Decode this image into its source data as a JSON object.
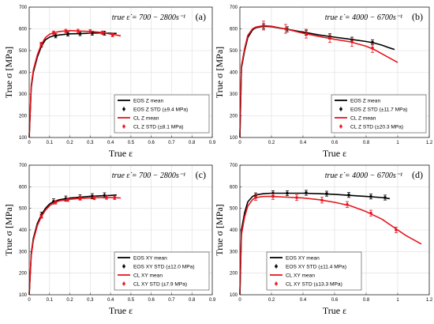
{
  "chart_data": [
    {
      "type": "line",
      "panel_label": "(a)",
      "annotation": "true ε̇ = 700 − 2800s⁻¹",
      "xlabel": "True ε",
      "ylabel": "True σ [MPa]",
      "xlim": [
        0,
        0.9
      ],
      "ylim": [
        100,
        700
      ],
      "xticks": [
        "0",
        "0.1",
        "0.2",
        "0.3",
        "0.4",
        "0.5",
        "0.6",
        "0.7",
        "0.8",
        "0.9"
      ],
      "yticks": [
        "100",
        "200",
        "300",
        "400",
        "500",
        "600",
        "700"
      ],
      "grid": true,
      "legend_position": "bottom-right",
      "series": [
        {
          "name": "EOS Z mean",
          "color": "#000000",
          "style": "line",
          "x": [
            0,
            0.01,
            0.02,
            0.04,
            0.06,
            0.08,
            0.1,
            0.12,
            0.15,
            0.2,
            0.25,
            0.3,
            0.35,
            0.4,
            0.43
          ],
          "y": [
            100,
            330,
            400,
            470,
            520,
            550,
            562,
            568,
            572,
            577,
            578,
            580,
            581,
            580,
            579
          ]
        },
        {
          "name": "EOS Z STD (±9.4 MPa)",
          "color": "#000000",
          "style": "errorbar",
          "x": [
            0.06,
            0.13,
            0.19,
            0.25,
            0.31,
            0.37
          ],
          "y": [
            525,
            568,
            576,
            578,
            580,
            580
          ],
          "err": [
            9.4,
            9.4,
            9.4,
            9.4,
            9.4,
            9.4
          ]
        },
        {
          "name": "CL Z mean",
          "color": "#e8141c",
          "style": "line",
          "x": [
            0,
            0.01,
            0.02,
            0.04,
            0.06,
            0.08,
            0.1,
            0.12,
            0.15,
            0.2,
            0.25,
            0.3,
            0.35,
            0.4,
            0.45
          ],
          "y": [
            100,
            340,
            410,
            480,
            530,
            560,
            575,
            582,
            588,
            592,
            590,
            588,
            584,
            576,
            568
          ]
        },
        {
          "name": "CL Z STD (±8.1 MPa)",
          "color": "#e8141c",
          "style": "errorbar",
          "x": [
            0.06,
            0.12,
            0.18,
            0.24,
            0.3,
            0.36,
            0.41
          ],
          "y": [
            530,
            582,
            590,
            590,
            588,
            582,
            572
          ],
          "err": [
            8.1,
            8.1,
            8.1,
            8.1,
            8.1,
            8.1,
            8.1
          ]
        }
      ]
    },
    {
      "type": "line",
      "panel_label": "(b)",
      "annotation": "true ε̇ = 4000 − 6700s⁻¹",
      "xlabel": "True ε",
      "ylabel": "True σ [MPa]",
      "xlim": [
        0,
        1.2
      ],
      "ylim": [
        100,
        700
      ],
      "xticks": [
        "0",
        "0.2",
        "0.4",
        "0.6",
        "0.8",
        "1",
        "1.2"
      ],
      "yticks": [
        "100",
        "200",
        "300",
        "400",
        "500",
        "600",
        "700"
      ],
      "grid": true,
      "legend_position": "bottom-right",
      "series": [
        {
          "name": "EOS Z mean",
          "color": "#000000",
          "style": "line",
          "x": [
            0,
            0.01,
            0.03,
            0.05,
            0.08,
            0.1,
            0.15,
            0.2,
            0.3,
            0.4,
            0.5,
            0.6,
            0.7,
            0.8,
            0.85,
            0.9,
            0.95,
            0.98
          ],
          "y": [
            100,
            420,
            500,
            560,
            595,
            605,
            612,
            610,
            598,
            585,
            572,
            562,
            552,
            542,
            535,
            525,
            512,
            505
          ]
        },
        {
          "name": "EOS Z STD (±11.7 MPa)",
          "color": "#000000",
          "style": "errorbar",
          "x": [
            0.15,
            0.3,
            0.42,
            0.57,
            0.71,
            0.84
          ],
          "y": [
            612,
            598,
            582,
            565,
            550,
            538
          ],
          "err": [
            11.7,
            11.7,
            11.7,
            11.7,
            11.7,
            11.7
          ]
        },
        {
          "name": "CL Z mean",
          "color": "#e8141c",
          "style": "line",
          "x": [
            0,
            0.01,
            0.03,
            0.05,
            0.08,
            0.1,
            0.15,
            0.2,
            0.3,
            0.4,
            0.5,
            0.6,
            0.7,
            0.8,
            0.85,
            0.9,
            0.95,
            1.0
          ],
          "y": [
            100,
            430,
            510,
            570,
            600,
            608,
            615,
            612,
            598,
            580,
            565,
            552,
            540,
            520,
            505,
            485,
            465,
            445
          ]
        },
        {
          "name": "CL Z STD (±20.3 MPa)",
          "color": "#e8141c",
          "style": "errorbar",
          "x": [
            0.15,
            0.29,
            0.42,
            0.57,
            0.71,
            0.84
          ],
          "y": [
            615,
            600,
            578,
            558,
            540,
            512
          ],
          "err": [
            20.3,
            20.3,
            20.3,
            20.3,
            20.3,
            20.3
          ]
        }
      ]
    },
    {
      "type": "line",
      "panel_label": "(c)",
      "annotation": "true ε̇ = 700 − 2800s⁻¹",
      "xlabel": "True ε",
      "ylabel": "True σ [MPa]",
      "xlim": [
        0,
        0.9
      ],
      "ylim": [
        100,
        700
      ],
      "xticks": [
        "0",
        "0.1",
        "0.2",
        "0.3",
        "0.4",
        "0.5",
        "0.6",
        "0.7",
        "0.8",
        "0.9"
      ],
      "yticks": [
        "100",
        "200",
        "300",
        "400",
        "500",
        "600",
        "700"
      ],
      "grid": true,
      "legend_position": "bottom-right",
      "series": [
        {
          "name": "EOS XY mean",
          "color": "#000000",
          "style": "line",
          "x": [
            0,
            0.01,
            0.02,
            0.04,
            0.06,
            0.08,
            0.1,
            0.12,
            0.15,
            0.2,
            0.25,
            0.3,
            0.35,
            0.4,
            0.43
          ],
          "y": [
            100,
            290,
            360,
            430,
            470,
            500,
            520,
            532,
            540,
            548,
            552,
            556,
            558,
            560,
            562
          ]
        },
        {
          "name": "EOS XY STD (±12.0 MPa)",
          "color": "#000000",
          "style": "errorbar",
          "x": [
            0.06,
            0.12,
            0.18,
            0.25,
            0.31,
            0.37
          ],
          "y": [
            470,
            532,
            545,
            551,
            556,
            560
          ],
          "err": [
            12.0,
            12.0,
            12.0,
            12.0,
            12.0,
            12.0
          ]
        },
        {
          "name": "CL XY mean",
          "color": "#e8141c",
          "style": "line",
          "x": [
            0,
            0.01,
            0.02,
            0.04,
            0.06,
            0.08,
            0.1,
            0.12,
            0.15,
            0.2,
            0.25,
            0.3,
            0.35,
            0.4,
            0.45
          ],
          "y": [
            100,
            280,
            350,
            420,
            462,
            492,
            512,
            525,
            535,
            542,
            546,
            548,
            550,
            550,
            548
          ]
        },
        {
          "name": "CL XY STD (±7.9 MPa)",
          "color": "#e8141c",
          "style": "errorbar",
          "x": [
            0.06,
            0.13,
            0.19,
            0.25,
            0.32,
            0.38,
            0.42
          ],
          "y": [
            462,
            528,
            540,
            546,
            548,
            550,
            549
          ],
          "err": [
            7.9,
            7.9,
            7.9,
            7.9,
            7.9,
            7.9,
            7.9
          ]
        }
      ]
    },
    {
      "type": "line",
      "panel_label": "(d)",
      "annotation": "true ε̇ = 4000 − 6700s⁻¹",
      "xlabel": "True ε",
      "ylabel": "True σ [MPa]",
      "xlim": [
        0,
        1.2
      ],
      "ylim": [
        100,
        700
      ],
      "xticks": [
        "0",
        "0.2",
        "0.4",
        "0.6",
        "0.8",
        "1",
        "1.2"
      ],
      "yticks": [
        "100",
        "200",
        "300",
        "400",
        "500",
        "600",
        "700"
      ],
      "grid": true,
      "legend_position": "bottom-left",
      "series": [
        {
          "name": "EOS XY mean",
          "color": "#000000",
          "style": "line",
          "x": [
            0,
            0.01,
            0.03,
            0.05,
            0.08,
            0.1,
            0.15,
            0.2,
            0.3,
            0.4,
            0.5,
            0.6,
            0.7,
            0.8,
            0.9,
            0.95
          ],
          "y": [
            100,
            400,
            480,
            530,
            555,
            562,
            568,
            570,
            570,
            570,
            568,
            565,
            560,
            555,
            550,
            545
          ]
        },
        {
          "name": "EOS XY STD (±11.4 MPa)",
          "color": "#000000",
          "style": "errorbar",
          "x": [
            0.1,
            0.21,
            0.3,
            0.42,
            0.55,
            0.69,
            0.83,
            0.92
          ],
          "y": [
            560,
            570,
            570,
            572,
            568,
            562,
            555,
            550
          ],
          "err": [
            11.4,
            11.4,
            11.4,
            11.4,
            11.4,
            11.4,
            11.4,
            11.4
          ]
        },
        {
          "name": "CL XY mean",
          "color": "#e8141c",
          "style": "line",
          "x": [
            0,
            0.01,
            0.03,
            0.05,
            0.08,
            0.1,
            0.15,
            0.2,
            0.3,
            0.4,
            0.5,
            0.6,
            0.7,
            0.8,
            0.9,
            1.0,
            1.05,
            1.1,
            1.15
          ],
          "y": [
            100,
            380,
            460,
            510,
            540,
            550,
            555,
            555,
            552,
            548,
            540,
            528,
            512,
            485,
            450,
            400,
            375,
            355,
            335
          ]
        },
        {
          "name": "CL XY STD (±13.3 MPa)",
          "color": "#e8141c",
          "style": "errorbar",
          "x": [
            0.1,
            0.21,
            0.36,
            0.52,
            0.68,
            0.83,
            0.99
          ],
          "y": [
            550,
            555,
            550,
            538,
            518,
            478,
            400
          ],
          "err": [
            13.3,
            13.3,
            13.3,
            13.3,
            13.3,
            13.3,
            13.3
          ]
        }
      ]
    }
  ]
}
